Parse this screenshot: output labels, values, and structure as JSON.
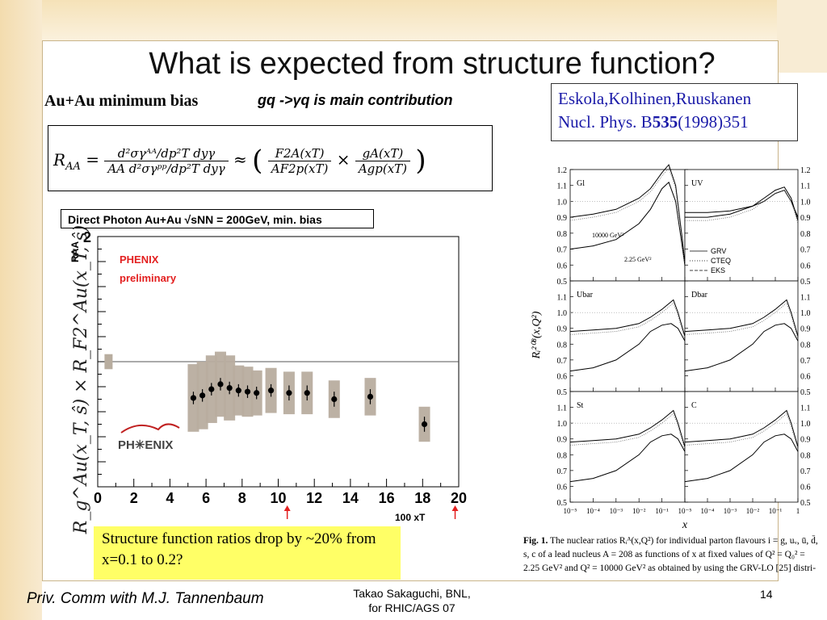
{
  "slide": {
    "title": "What is expected from structure function?",
    "subtitle_left": "Au+Au minimum bias",
    "subtitle_right": "gq ->γq is main contribution",
    "reference": {
      "line1": "Eskola,Kolhinen,Ruuskanen",
      "line2_prefix": "Nucl. Phys. B",
      "line2_bold": "535",
      "line2_suffix": "(1998)351"
    },
    "statement": "Structure function ratios drop by ~20% from x=0.1 to 0.2?",
    "footer_left": "Priv. Comm with M.J. Tannenbaum",
    "footer_center_line1": "Takao Sakaguchi, BNL,",
    "footer_center_line2": "for RHIC/AGS 07",
    "page_number": "14"
  },
  "equation": {
    "lhs": "R",
    "lhs_sub": "AA",
    "num1": "d²σγᴬᴬ/dp²T dyγ",
    "den1": "AA d²σγᵖᵖ/dp²T dyγ",
    "num2": "F2A(xT)",
    "den2": "AF2p(xT)",
    "num3": "gA(xT)",
    "den3": "Agp(xT)"
  },
  "chart_data": [
    {
      "type": "scatter",
      "title": "Direct Photon Au+Au √sNN = 200GeV, min. bias",
      "ylabel": "RAA",
      "ylabel_overlay": "R_g^Au(x_T, ŝ) × R_F2^Au(x_T, ŝ)",
      "x_tick_labels": [
        "0",
        "2",
        "4",
        "6",
        "8",
        "10",
        "12",
        "14",
        "16",
        "18",
        "20"
      ],
      "y_tick_labels": [
        "2"
      ],
      "xlim": [
        0,
        20
      ],
      "ylim": [
        0,
        2
      ],
      "annotations": [
        "PHENIX",
        "preliminary",
        "PH✳ENIX",
        "100 xT"
      ],
      "reference_line": 1.0,
      "arrows_at_x": [
        10.5,
        19.8
      ],
      "points": [
        {
          "x": 5.3,
          "y": 0.71,
          "err": 0.05,
          "sys": 0.27
        },
        {
          "x": 5.8,
          "y": 0.73,
          "err": 0.05,
          "sys": 0.27
        },
        {
          "x": 6.3,
          "y": 0.78,
          "err": 0.05,
          "sys": 0.27
        },
        {
          "x": 6.8,
          "y": 0.82,
          "err": 0.05,
          "sys": 0.26
        },
        {
          "x": 7.3,
          "y": 0.79,
          "err": 0.05,
          "sys": 0.26
        },
        {
          "x": 7.8,
          "y": 0.77,
          "err": 0.05,
          "sys": 0.2
        },
        {
          "x": 8.3,
          "y": 0.76,
          "err": 0.05,
          "sys": 0.2
        },
        {
          "x": 8.8,
          "y": 0.75,
          "err": 0.05,
          "sys": 0.18
        },
        {
          "x": 9.6,
          "y": 0.77,
          "err": 0.05,
          "sys": 0.18
        },
        {
          "x": 10.6,
          "y": 0.75,
          "err": 0.06,
          "sys": 0.17
        },
        {
          "x": 11.6,
          "y": 0.75,
          "err": 0.06,
          "sys": 0.17
        },
        {
          "x": 13.1,
          "y": 0.7,
          "err": 0.06,
          "sys": 0.15
        },
        {
          "x": 15.1,
          "y": 0.72,
          "err": 0.06,
          "sys": 0.15
        },
        {
          "x": 18.1,
          "y": 0.5,
          "err": 0.06,
          "sys": 0.14
        }
      ],
      "extra_sys_band": {
        "x": 0.6,
        "y": 1.0,
        "sys": 0.06
      }
    },
    {
      "type": "line",
      "title": "",
      "xlabel": "x",
      "ylabel": "Rᵢ²⁰⁸(x,Q²)",
      "x_scale": "log",
      "xlim": [
        1e-05,
        1
      ],
      "ylim": [
        0.5,
        1.2
      ],
      "x_tick_labels": [
        "10⁻⁵",
        "10⁻⁴",
        "10⁻³",
        "10⁻²",
        "10⁻¹",
        "1"
      ],
      "y_tick_labels": [
        "0.5",
        "0.6",
        "0.7",
        "0.8",
        "0.9",
        "1.0",
        "1.1",
        "1.2"
      ],
      "legend": [
        "GRV",
        "CTEQ",
        "EKS"
      ],
      "curve_labels": [
        "10000 GeV²",
        "2.25 GeV²"
      ],
      "panels": [
        {
          "label": "Gl",
          "low": [
            [
              -5,
              0.7
            ],
            [
              -4,
              0.72
            ],
            [
              -3,
              0.76
            ],
            [
              -2,
              0.86
            ],
            [
              -1.5,
              0.95
            ],
            [
              -1,
              1.08
            ],
            [
              -0.7,
              1.12
            ],
            [
              -0.4,
              1.0
            ],
            [
              -0.1,
              0.7
            ],
            [
              0,
              0.6
            ]
          ],
          "high": [
            [
              -5,
              0.9
            ],
            [
              -4,
              0.92
            ],
            [
              -3,
              0.95
            ],
            [
              -2,
              1.02
            ],
            [
              -1.5,
              1.08
            ],
            [
              -1,
              1.18
            ],
            [
              -0.7,
              1.23
            ],
            [
              -0.4,
              1.1
            ],
            [
              -0.1,
              0.75
            ],
            [
              0,
              0.6
            ]
          ]
        },
        {
          "label": "UV",
          "low": [
            [
              -5,
              0.93
            ],
            [
              -4,
              0.93
            ],
            [
              -3,
              0.94
            ],
            [
              -2,
              0.97
            ],
            [
              -1.5,
              1.0
            ],
            [
              -1,
              1.05
            ],
            [
              -0.6,
              1.07
            ],
            [
              -0.3,
              1.0
            ],
            [
              0,
              0.9
            ]
          ],
          "high": [
            [
              -5,
              0.9
            ],
            [
              -4,
              0.9
            ],
            [
              -3,
              0.92
            ],
            [
              -2,
              0.97
            ],
            [
              -1.5,
              1.02
            ],
            [
              -1,
              1.07
            ],
            [
              -0.6,
              1.09
            ],
            [
              -0.3,
              1.02
            ],
            [
              0,
              0.88
            ]
          ]
        },
        {
          "label": "Ubar",
          "low": [
            [
              -5,
              0.63
            ],
            [
              -4,
              0.65
            ],
            [
              -3,
              0.7
            ],
            [
              -2,
              0.8
            ],
            [
              -1.5,
              0.88
            ],
            [
              -1,
              0.92
            ],
            [
              -0.6,
              0.93
            ],
            [
              -0.3,
              0.9
            ],
            [
              0,
              0.82
            ]
          ],
          "high": [
            [
              -5,
              0.88
            ],
            [
              -4,
              0.89
            ],
            [
              -3,
              0.9
            ],
            [
              -2,
              0.93
            ],
            [
              -1.5,
              0.97
            ],
            [
              -1,
              1.02
            ],
            [
              -0.5,
              1.08
            ],
            [
              -0.3,
              1.0
            ],
            [
              0,
              0.85
            ]
          ]
        },
        {
          "label": "Dbar",
          "low": [
            [
              -5,
              0.63
            ],
            [
              -4,
              0.65
            ],
            [
              -3,
              0.7
            ],
            [
              -2,
              0.8
            ],
            [
              -1.5,
              0.88
            ],
            [
              -1,
              0.92
            ],
            [
              -0.6,
              0.93
            ],
            [
              -0.3,
              0.9
            ],
            [
              0,
              0.82
            ]
          ],
          "high": [
            [
              -5,
              0.88
            ],
            [
              -4,
              0.89
            ],
            [
              -3,
              0.9
            ],
            [
              -2,
              0.93
            ],
            [
              -1.5,
              0.97
            ],
            [
              -1,
              1.02
            ],
            [
              -0.5,
              1.08
            ],
            [
              -0.3,
              1.0
            ],
            [
              0,
              0.85
            ]
          ]
        },
        {
          "label": "St",
          "low": [
            [
              -5,
              0.63
            ],
            [
              -4,
              0.65
            ],
            [
              -3,
              0.7
            ],
            [
              -2,
              0.8
            ],
            [
              -1.5,
              0.88
            ],
            [
              -1,
              0.92
            ],
            [
              -0.6,
              0.93
            ],
            [
              -0.3,
              0.9
            ],
            [
              0,
              0.82
            ]
          ],
          "high": [
            [
              -5,
              0.88
            ],
            [
              -4,
              0.89
            ],
            [
              -3,
              0.9
            ],
            [
              -2,
              0.93
            ],
            [
              -1.5,
              0.97
            ],
            [
              -1,
              1.02
            ],
            [
              -0.5,
              1.08
            ],
            [
              -0.3,
              1.0
            ],
            [
              0,
              0.85
            ]
          ]
        },
        {
          "label": "C",
          "low": [
            [
              -5,
              0.63
            ],
            [
              -4,
              0.65
            ],
            [
              -3,
              0.7
            ],
            [
              -2,
              0.8
            ],
            [
              -1.5,
              0.88
            ],
            [
              -1,
              0.92
            ],
            [
              -0.6,
              0.93
            ],
            [
              -0.3,
              0.9
            ],
            [
              0,
              0.82
            ]
          ],
          "high": [
            [
              -5,
              0.88
            ],
            [
              -4,
              0.89
            ],
            [
              -3,
              0.9
            ],
            [
              -2,
              0.93
            ],
            [
              -1.5,
              0.97
            ],
            [
              -1,
              1.02
            ],
            [
              -0.5,
              1.08
            ],
            [
              -0.3,
              1.0
            ],
            [
              0,
              0.85
            ]
          ]
        }
      ]
    }
  ],
  "figure_caption": {
    "label": "Fig. 1.",
    "text": "The nuclear ratios Rᵢᴬ(x,Q²) for individual parton flavours i = g, uᵥ, ū, d̄, s, c of a lead nucleus A = 208 as functions of x at fixed values of Q² = Q₀² = 2.25 GeV² and Q² = 10000 GeV² as obtained by using the GRV-LO [25] distri-"
  }
}
